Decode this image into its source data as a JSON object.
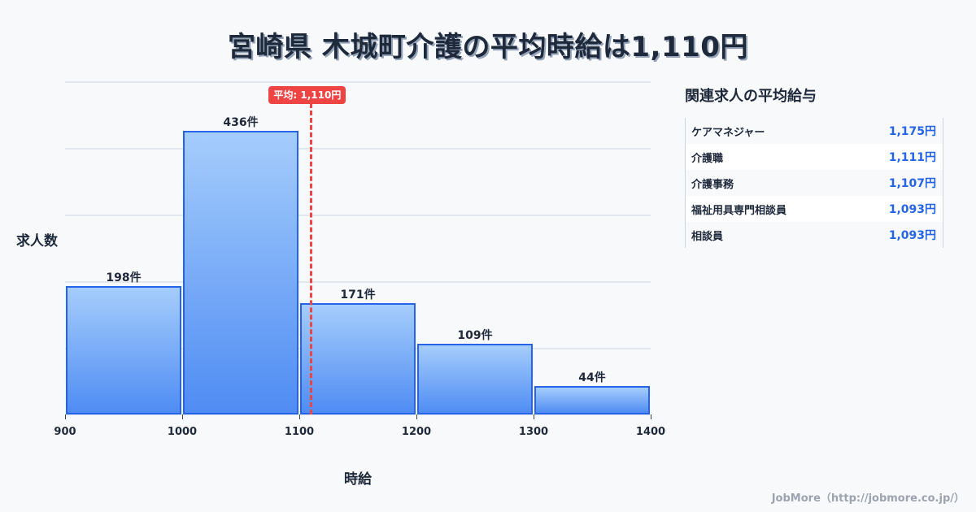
{
  "title": "宮崎県 木城町介護の平均時給は1,110円",
  "chart_data": {
    "type": "bar",
    "title": "宮崎県 木城町介護の平均時給は1,110円",
    "xlabel": "時給",
    "ylabel": "求人数",
    "categories": [
      "900-1000",
      "1000-1100",
      "1100-1200",
      "1200-1300",
      "1300-1400"
    ],
    "bin_edges": [
      900,
      1000,
      1100,
      1200,
      1300,
      1400
    ],
    "values": [
      198,
      436,
      171,
      109,
      44
    ],
    "value_labels": [
      "198件",
      "436件",
      "171件",
      "109件",
      "44件"
    ],
    "x_tick_labels": [
      "900",
      "1000",
      "1100",
      "1200",
      "1300",
      "1400"
    ],
    "xlim": [
      900,
      1400
    ],
    "grid": true,
    "average": {
      "value": 1110,
      "label": "平均: 1,110円",
      "color": "#ef4444"
    },
    "bar_color": "#4f8cf3",
    "bar_border_color": "#2563eb"
  },
  "axes": {
    "ylabel": "求人数",
    "xlabel": "時給"
  },
  "sidebar": {
    "title": "関連求人の平均給与",
    "rows": [
      {
        "name": "ケアマネジャー",
        "value": "1,175円"
      },
      {
        "name": "介護職",
        "value": "1,111円"
      },
      {
        "name": "介護事務",
        "value": "1,107円"
      },
      {
        "name": "福祉用具専門相談員",
        "value": "1,093円"
      },
      {
        "name": "相談員",
        "value": "1,093円"
      }
    ]
  },
  "footer": "JobMore（http://jobmore.co.jp/）"
}
